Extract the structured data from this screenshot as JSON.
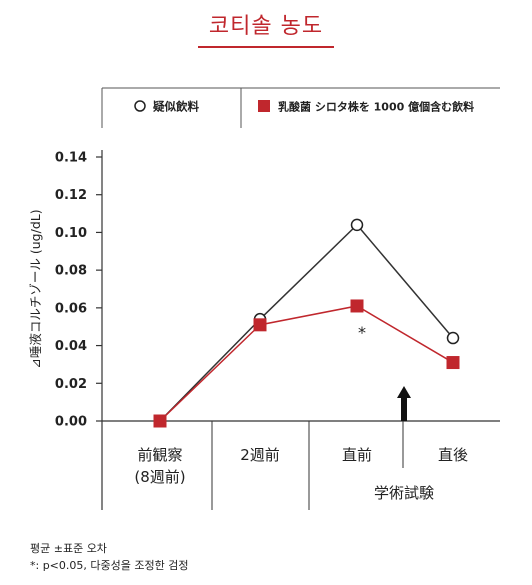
{
  "header": {
    "title": "코티솔 농도"
  },
  "colors": {
    "accent": "#c0272d",
    "placebo": "#333333",
    "lactic": "#c0272d"
  },
  "chart_data": {
    "type": "line",
    "title": "",
    "ylabel": "⊿唾液コルチゾール (ug/dL)",
    "xlabel": "",
    "ylim": [
      0,
      0.14
    ],
    "yticks": [
      "0.00",
      "0.02",
      "0.04",
      "0.06",
      "0.08",
      "0.10",
      "0.12",
      "0.14"
    ],
    "categories": [
      [
        "前観察",
        "(8週前)"
      ],
      [
        "2週前"
      ],
      [
        "直前"
      ],
      [
        "直後"
      ]
    ],
    "legend_position": "top",
    "series": [
      {
        "name": "疑似飲料",
        "marker": "circle-open",
        "values": [
          0.0,
          0.054,
          0.104,
          0.044
        ]
      },
      {
        "name": "乳酸菌 シロタ株を 1000 億個含む飲料",
        "marker": "square-filled",
        "values": [
          0.0,
          0.051,
          0.061,
          0.031
        ]
      }
    ],
    "annotations": {
      "significance": "*",
      "event_label": "学術試験"
    }
  },
  "footnotes": {
    "line1": "평균 ±표준 오차",
    "line2": "*: p<0.05, 다중성을 조정한 검정"
  }
}
